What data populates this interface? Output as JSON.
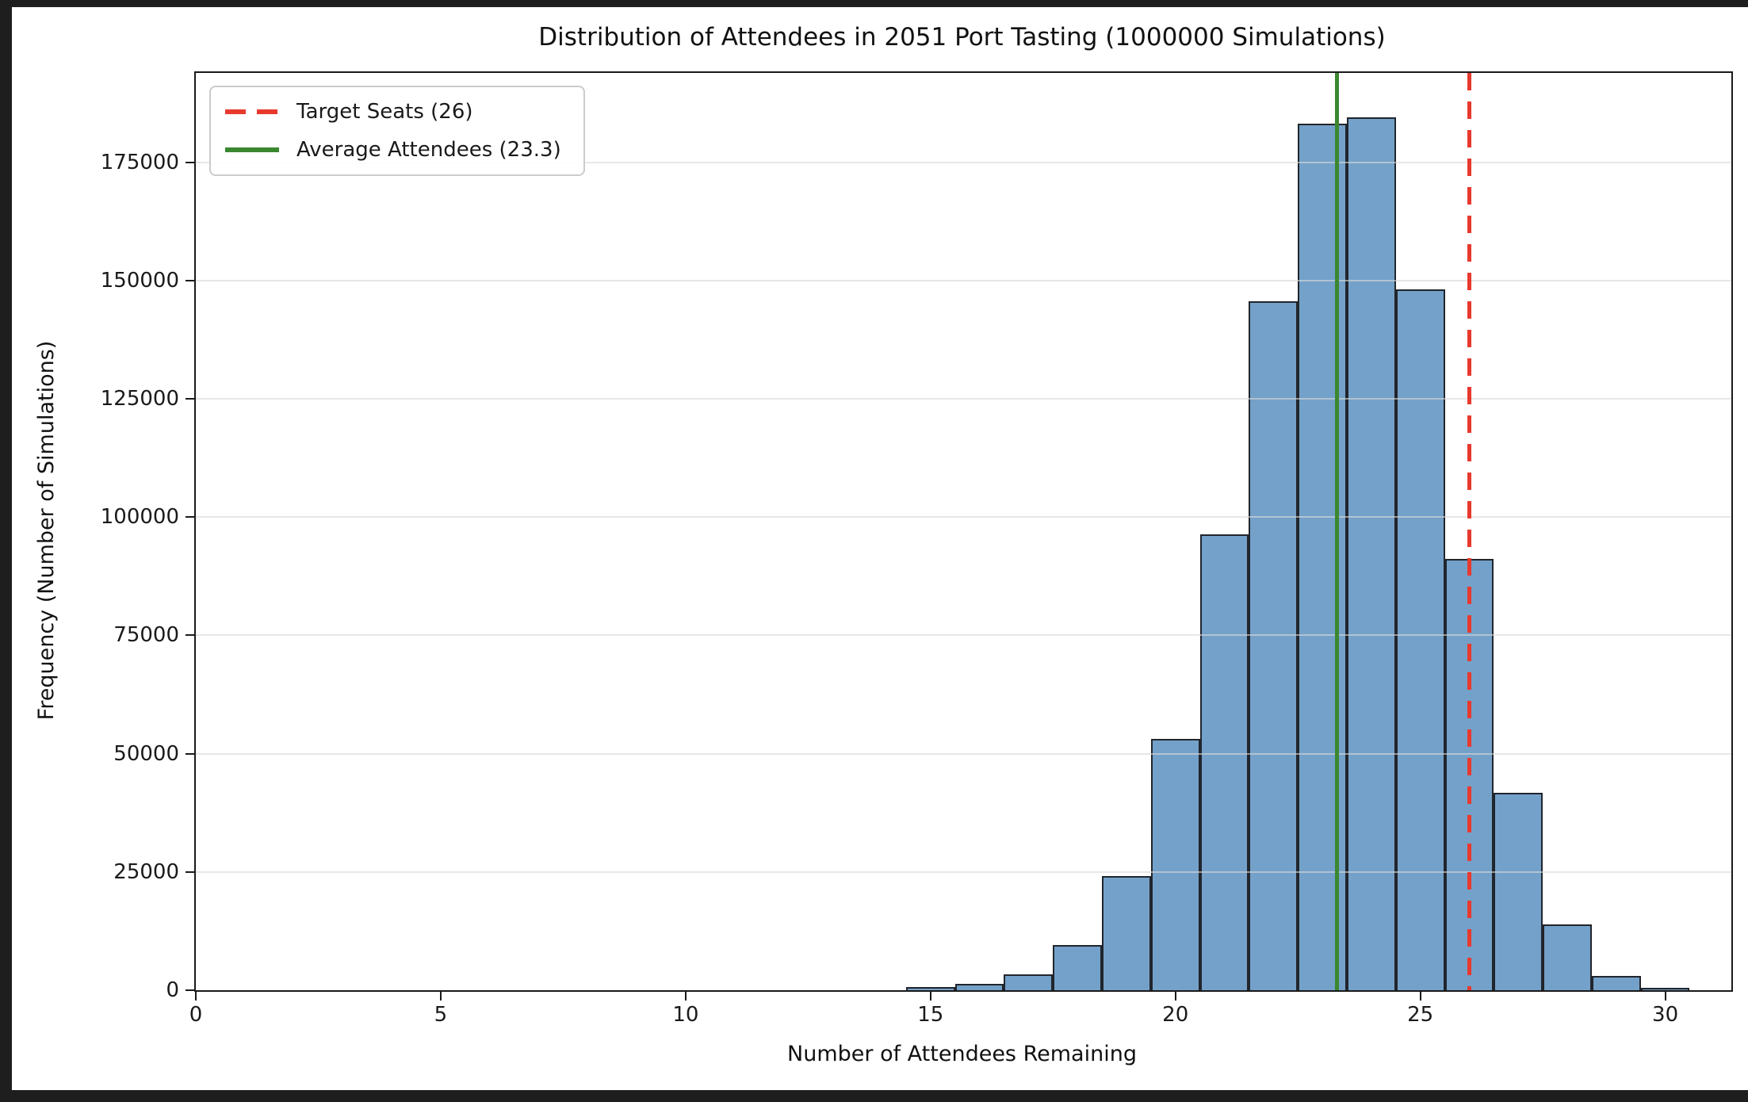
{
  "figure": {
    "title": "Distribution of Attendees in 2051 Port Tasting (1000000 Simulations)",
    "background_color": "#ffffff",
    "frame_color": "#1e1e1e"
  },
  "chart_data": {
    "type": "bar",
    "subtype": "histogram",
    "title": "Distribution of Attendees in 2051 Port Tasting (1000000 Simulations)",
    "xlabel": "Number of Attendees Remaining",
    "ylabel": "Frequency (Number of Simulations)",
    "bin_width": 1,
    "bin_centers": [
      15,
      16,
      17,
      18,
      19,
      20,
      21,
      22,
      23,
      24,
      25,
      26,
      27,
      28,
      29,
      30
    ],
    "values": [
      650,
      1300,
      3400,
      9600,
      24100,
      53200,
      96300,
      145600,
      183200,
      184500,
      148200,
      91200,
      41800,
      13850,
      3080,
      450
    ],
    "xlim": [
      0,
      31.35
    ],
    "ylim": [
      0,
      193900
    ],
    "xticks": [
      0,
      5,
      10,
      15,
      20,
      25,
      30
    ],
    "yticks": [
      0,
      25000,
      50000,
      75000,
      100000,
      125000,
      150000,
      175000
    ],
    "grid": "horizontal",
    "grid_color": "#d8d8d8",
    "bar_color": "#74a1c9",
    "bar_edge_color": "#21252c",
    "legend_position": "upper-left",
    "vlines": [
      {
        "label": "Target Seats (26)",
        "x": 26,
        "color": "#e8392e",
        "style": "dashed",
        "width": 5
      },
      {
        "label": "Average Attendees (23.3)",
        "x": 23.3,
        "color": "#3a8730",
        "style": "solid",
        "width": 5
      }
    ]
  }
}
